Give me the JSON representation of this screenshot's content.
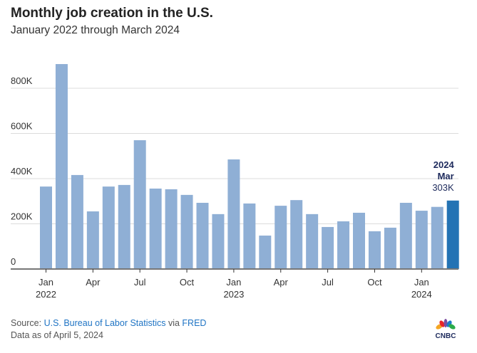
{
  "header": {
    "title": "Monthly job creation in the U.S.",
    "subtitle": "January 2022 through March 2024"
  },
  "footer": {
    "source_prefix": "Source: ",
    "source_link": "U.S. Bureau of Labor Statistics",
    "source_via": " via ",
    "source_link2": "FRED",
    "data_as_of": "Data as of April 5, 2024",
    "logo_text": "CNBC"
  },
  "colors": {
    "bar": "#8fafd5",
    "highlight": "#2473b4",
    "annotation": "#1d2a5c",
    "grid": "#dcdcdc",
    "axis": "#777777"
  },
  "chart_data": {
    "type": "bar",
    "title": "Monthly job creation in the U.S.",
    "xlabel": "",
    "ylabel": "",
    "ylim": [
      0,
      900
    ],
    "grid": true,
    "yticks": [
      0,
      200,
      400,
      600,
      800
    ],
    "ytick_labels": [
      "0",
      "200K",
      "400K",
      "600K",
      "800K"
    ],
    "categories": [
      "Jan 2022",
      "Feb 2022",
      "Mar 2022",
      "Apr 2022",
      "May 2022",
      "Jun 2022",
      "Jul 2022",
      "Aug 2022",
      "Sep 2022",
      "Oct 2022",
      "Nov 2022",
      "Dec 2022",
      "Jan 2023",
      "Feb 2023",
      "Mar 2023",
      "Apr 2023",
      "May 2023",
      "Jun 2023",
      "Jul 2023",
      "Aug 2023",
      "Sep 2023",
      "Oct 2023",
      "Nov 2023",
      "Dec 2023",
      "Jan 2024",
      "Feb 2024",
      "Mar 2024"
    ],
    "values": [
      365,
      907,
      416,
      255,
      365,
      372,
      570,
      356,
      353,
      328,
      293,
      243,
      485,
      290,
      148,
      280,
      305,
      243,
      186,
      211,
      249,
      167,
      183,
      293,
      258,
      275,
      303
    ],
    "units": "thousands of jobs",
    "xticks": [
      {
        "index": 0,
        "label": "Jan",
        "year": "2022"
      },
      {
        "index": 3,
        "label": "Apr",
        "year": ""
      },
      {
        "index": 6,
        "label": "Jul",
        "year": ""
      },
      {
        "index": 9,
        "label": "Oct",
        "year": ""
      },
      {
        "index": 12,
        "label": "Jan",
        "year": "2023"
      },
      {
        "index": 15,
        "label": "Apr",
        "year": ""
      },
      {
        "index": 18,
        "label": "Jul",
        "year": ""
      },
      {
        "index": 21,
        "label": "Oct",
        "year": ""
      },
      {
        "index": 24,
        "label": "Jan",
        "year": "2024"
      }
    ],
    "highlight_index": 26,
    "annotation": {
      "year": "2024",
      "month": "Mar",
      "value": "303K"
    }
  }
}
